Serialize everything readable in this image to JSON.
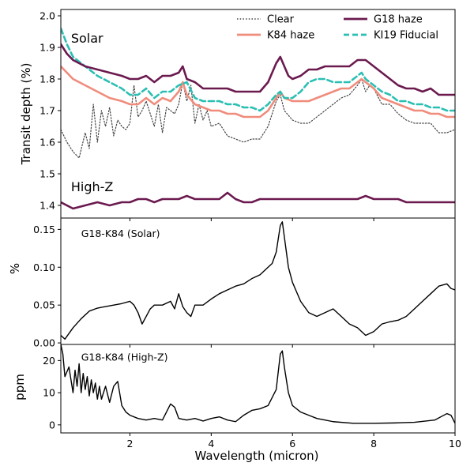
{
  "chart_data": {
    "type": "line",
    "xlabel": "Wavelength (micron)",
    "xlim": [
      0.3,
      10
    ],
    "xticks": [
      2,
      4,
      6,
      8,
      10
    ],
    "panels": [
      {
        "id": "top",
        "ylabel": "Transit depth (%)",
        "ylim": [
          1.36,
          2.02
        ],
        "yticks": [
          1.4,
          1.5,
          1.6,
          1.7,
          1.8,
          1.9,
          2.0
        ],
        "yticklabels": [
          "1.4",
          "1.5",
          "1.6",
          "1.7",
          "1.8",
          "1.9",
          "2.0"
        ],
        "annotations": [
          {
            "text": "Solar",
            "x": 0.55,
            "y": 1.915
          },
          {
            "text": "High-Z",
            "x": 0.55,
            "y": 1.445
          }
        ],
        "legend": {
          "placement": "top-right",
          "entries": [
            {
              "label": "Clear",
              "color": "#444444",
              "style": "dotted"
            },
            {
              "label": "G18 haze",
              "color": "#6b1a4f",
              "style": "solid"
            },
            {
              "label": "K84 haze",
              "color": "#f08c7c",
              "style": "solid"
            },
            {
              "label": "KI19 Fiducial",
              "color": "#2bbfb3",
              "style": "dashed"
            }
          ]
        },
        "series": [
          {
            "name": "Clear",
            "color": "#444444",
            "style": "dotted",
            "width": 1.2,
            "x": [
              0.3,
              0.45,
              0.6,
              0.75,
              0.9,
              1.0,
              1.1,
              1.2,
              1.3,
              1.4,
              1.5,
              1.6,
              1.7,
              1.8,
              1.9,
              2.0,
              2.1,
              2.2,
              2.3,
              2.4,
              2.5,
              2.6,
              2.7,
              2.8,
              2.9,
              3.0,
              3.1,
              3.2,
              3.3,
              3.4,
              3.5,
              3.6,
              3.7,
              3.8,
              3.9,
              4.0,
              4.2,
              4.4,
              4.6,
              4.8,
              5.0,
              5.2,
              5.4,
              5.6,
              5.7,
              5.8,
              6.0,
              6.2,
              6.4,
              6.6,
              6.8,
              7.0,
              7.2,
              7.4,
              7.6,
              7.7,
              7.8,
              7.9,
              8.0,
              8.2,
              8.4,
              8.6,
              8.8,
              9.0,
              9.2,
              9.4,
              9.6,
              9.8,
              10.0
            ],
            "y": [
              1.64,
              1.6,
              1.57,
              1.55,
              1.63,
              1.58,
              1.72,
              1.6,
              1.7,
              1.65,
              1.71,
              1.62,
              1.67,
              1.65,
              1.64,
              1.66,
              1.78,
              1.68,
              1.7,
              1.73,
              1.69,
              1.65,
              1.72,
              1.63,
              1.71,
              1.7,
              1.69,
              1.72,
              1.79,
              1.73,
              1.78,
              1.66,
              1.72,
              1.67,
              1.7,
              1.65,
              1.66,
              1.62,
              1.61,
              1.6,
              1.61,
              1.61,
              1.65,
              1.73,
              1.75,
              1.7,
              1.67,
              1.66,
              1.66,
              1.68,
              1.7,
              1.72,
              1.74,
              1.75,
              1.78,
              1.8,
              1.76,
              1.78,
              1.77,
              1.72,
              1.72,
              1.69,
              1.67,
              1.66,
              1.66,
              1.66,
              1.63,
              1.63,
              1.64
            ]
          },
          {
            "name": "K84 haze",
            "color": "#f08c7c",
            "style": "solid",
            "width": 2.6,
            "x": [
              0.3,
              0.6,
              0.9,
              1.2,
              1.5,
              1.8,
              2.0,
              2.2,
              2.4,
              2.6,
              2.8,
              3.0,
              3.2,
              3.3,
              3.4,
              3.6,
              3.8,
              4.0,
              4.2,
              4.4,
              4.6,
              4.8,
              5.0,
              5.2,
              5.4,
              5.6,
              5.7,
              5.8,
              6.0,
              6.2,
              6.4,
              6.6,
              6.8,
              7.0,
              7.2,
              7.4,
              7.6,
              7.7,
              7.8,
              8.0,
              8.2,
              8.4,
              8.6,
              8.8,
              9.0,
              9.2,
              9.4,
              9.6,
              9.8,
              10.0
            ],
            "y": [
              1.84,
              1.8,
              1.78,
              1.76,
              1.74,
              1.73,
              1.72,
              1.72,
              1.74,
              1.72,
              1.74,
              1.73,
              1.76,
              1.79,
              1.75,
              1.72,
              1.71,
              1.7,
              1.7,
              1.69,
              1.69,
              1.68,
              1.68,
              1.68,
              1.7,
              1.74,
              1.76,
              1.74,
              1.73,
              1.73,
              1.73,
              1.74,
              1.75,
              1.76,
              1.77,
              1.77,
              1.79,
              1.8,
              1.79,
              1.77,
              1.74,
              1.73,
              1.72,
              1.71,
              1.7,
              1.7,
              1.69,
              1.69,
              1.68,
              1.68
            ]
          },
          {
            "name": "KI19 Fiducial",
            "color": "#2bbfb3",
            "style": "dashed",
            "width": 2.6,
            "x": [
              0.3,
              0.45,
              0.6,
              0.9,
              1.2,
              1.5,
              1.8,
              2.0,
              2.2,
              2.4,
              2.6,
              2.8,
              3.0,
              3.2,
              3.4,
              3.6,
              3.8,
              4.0,
              4.2,
              4.4,
              4.6,
              4.8,
              5.0,
              5.2,
              5.4,
              5.6,
              5.7,
              5.8,
              6.0,
              6.2,
              6.4,
              6.6,
              6.8,
              7.0,
              7.2,
              7.4,
              7.6,
              7.7,
              7.8,
              8.0,
              8.2,
              8.4,
              8.6,
              8.8,
              9.0,
              9.2,
              9.4,
              9.6,
              9.8,
              10.0
            ],
            "y": [
              1.96,
              1.91,
              1.87,
              1.84,
              1.81,
              1.79,
              1.77,
              1.75,
              1.75,
              1.77,
              1.74,
              1.76,
              1.76,
              1.78,
              1.79,
              1.74,
              1.73,
              1.73,
              1.73,
              1.72,
              1.72,
              1.71,
              1.71,
              1.7,
              1.72,
              1.75,
              1.76,
              1.74,
              1.74,
              1.76,
              1.79,
              1.8,
              1.8,
              1.79,
              1.79,
              1.79,
              1.81,
              1.82,
              1.8,
              1.78,
              1.76,
              1.75,
              1.73,
              1.73,
              1.72,
              1.72,
              1.71,
              1.71,
              1.7,
              1.7
            ]
          },
          {
            "name": "G18 haze (Solar)",
            "color": "#6b1a4f",
            "style": "solid",
            "width": 2.6,
            "x": [
              0.3,
              0.45,
              0.6,
              0.9,
              1.2,
              1.5,
              1.8,
              2.0,
              2.2,
              2.4,
              2.6,
              2.8,
              3.0,
              3.2,
              3.3,
              3.4,
              3.6,
              3.8,
              4.0,
              4.2,
              4.4,
              4.6,
              4.8,
              5.0,
              5.2,
              5.4,
              5.5,
              5.6,
              5.7,
              5.8,
              5.9,
              6.0,
              6.2,
              6.4,
              6.6,
              6.8,
              7.0,
              7.2,
              7.4,
              7.6,
              7.7,
              7.8,
              8.0,
              8.2,
              8.4,
              8.6,
              8.8,
              9.0,
              9.2,
              9.4,
              9.6,
              9.8,
              10.0
            ],
            "y": [
              1.91,
              1.88,
              1.86,
              1.84,
              1.83,
              1.82,
              1.81,
              1.8,
              1.8,
              1.81,
              1.79,
              1.81,
              1.81,
              1.82,
              1.84,
              1.8,
              1.79,
              1.77,
              1.77,
              1.77,
              1.77,
              1.76,
              1.76,
              1.76,
              1.76,
              1.79,
              1.82,
              1.85,
              1.87,
              1.84,
              1.81,
              1.8,
              1.81,
              1.83,
              1.83,
              1.84,
              1.84,
              1.84,
              1.84,
              1.86,
              1.86,
              1.86,
              1.84,
              1.82,
              1.8,
              1.78,
              1.77,
              1.77,
              1.76,
              1.77,
              1.75,
              1.75,
              1.75
            ]
          },
          {
            "name": "G18 haze (High-Z)",
            "color": "#6b1a4f",
            "style": "solid",
            "width": 2.6,
            "x": [
              0.3,
              0.6,
              0.9,
              1.2,
              1.5,
              1.8,
              2.0,
              2.2,
              2.4,
              2.6,
              2.8,
              3.0,
              3.2,
              3.4,
              3.6,
              3.8,
              4.0,
              4.2,
              4.4,
              4.6,
              4.8,
              5.0,
              5.2,
              5.4,
              5.6,
              5.8,
              6.0,
              6.2,
              6.4,
              6.6,
              6.8,
              7.0,
              7.2,
              7.4,
              7.6,
              7.8,
              8.0,
              8.2,
              8.4,
              8.6,
              8.8,
              9.0,
              9.2,
              9.4,
              9.6,
              9.8,
              10.0
            ],
            "y": [
              1.41,
              1.39,
              1.4,
              1.41,
              1.4,
              1.41,
              1.41,
              1.42,
              1.42,
              1.41,
              1.42,
              1.42,
              1.42,
              1.43,
              1.42,
              1.42,
              1.42,
              1.42,
              1.44,
              1.42,
              1.41,
              1.41,
              1.42,
              1.42,
              1.42,
              1.42,
              1.42,
              1.42,
              1.42,
              1.42,
              1.42,
              1.42,
              1.42,
              1.42,
              1.42,
              1.43,
              1.42,
              1.42,
              1.42,
              1.42,
              1.41,
              1.41,
              1.41,
              1.41,
              1.41,
              1.41,
              1.41
            ]
          }
        ]
      },
      {
        "id": "middle",
        "ylabel": "%",
        "ylim": [
          -0.002,
          0.165
        ],
        "yticks": [
          0.0,
          0.05,
          0.1,
          0.15
        ],
        "yticklabels": [
          "0.00",
          "0.05",
          "0.10",
          "0.15"
        ],
        "annotations": [
          {
            "text": "G18-K84 (Solar)",
            "x": 0.8,
            "y": 0.14
          }
        ],
        "series": [
          {
            "name": "G18-K84 (Solar)",
            "color": "#000000",
            "style": "solid",
            "width": 1.4,
            "x": [
              0.3,
              0.4,
              0.6,
              0.8,
              1.0,
              1.2,
              1.4,
              1.6,
              1.8,
              2.0,
              2.1,
              2.2,
              2.3,
              2.4,
              2.5,
              2.6,
              2.8,
              3.0,
              3.1,
              3.2,
              3.3,
              3.4,
              3.5,
              3.6,
              3.8,
              4.0,
              4.2,
              4.4,
              4.6,
              4.8,
              5.0,
              5.2,
              5.4,
              5.5,
              5.6,
              5.7,
              5.75,
              5.8,
              5.9,
              6.0,
              6.2,
              6.4,
              6.6,
              6.8,
              7.0,
              7.2,
              7.4,
              7.6,
              7.8,
              8.0,
              8.2,
              8.4,
              8.6,
              8.8,
              9.0,
              9.2,
              9.4,
              9.6,
              9.8,
              9.9,
              10.0
            ],
            "y": [
              0.01,
              0.005,
              0.02,
              0.032,
              0.042,
              0.046,
              0.048,
              0.05,
              0.052,
              0.055,
              0.05,
              0.04,
              0.025,
              0.035,
              0.045,
              0.05,
              0.05,
              0.055,
              0.045,
              0.065,
              0.048,
              0.04,
              0.035,
              0.05,
              0.05,
              0.058,
              0.065,
              0.07,
              0.075,
              0.078,
              0.085,
              0.09,
              0.1,
              0.105,
              0.12,
              0.155,
              0.16,
              0.14,
              0.1,
              0.08,
              0.055,
              0.04,
              0.035,
              0.04,
              0.045,
              0.035,
              0.025,
              0.02,
              0.01,
              0.015,
              0.025,
              0.028,
              0.03,
              0.035,
              0.045,
              0.055,
              0.065,
              0.075,
              0.078,
              0.072,
              0.07
            ]
          }
        ]
      },
      {
        "id": "bottom",
        "ylabel": "ppm",
        "ylim": [
          -2.5,
          25
        ],
        "yticks": [
          0,
          10,
          20
        ],
        "yticklabels": [
          "0",
          "10",
          "20"
        ],
        "annotations": [
          {
            "text": "G18-K84 (High-Z)",
            "x": 0.8,
            "y": 20.0
          }
        ],
        "series": [
          {
            "name": "G18-K84 (High-Z)",
            "color": "#000000",
            "style": "solid",
            "width": 1.4,
            "x": [
              0.3,
              0.35,
              0.4,
              0.5,
              0.6,
              0.65,
              0.7,
              0.75,
              0.8,
              0.85,
              0.9,
              0.95,
              1.0,
              1.05,
              1.1,
              1.15,
              1.2,
              1.25,
              1.3,
              1.4,
              1.5,
              1.6,
              1.7,
              1.8,
              1.9,
              2.0,
              2.2,
              2.4,
              2.6,
              2.8,
              3.0,
              3.1,
              3.2,
              3.4,
              3.6,
              3.8,
              4.0,
              4.2,
              4.4,
              4.6,
              4.8,
              5.0,
              5.2,
              5.4,
              5.6,
              5.7,
              5.75,
              5.8,
              5.9,
              6.0,
              6.2,
              6.4,
              6.6,
              6.8,
              7.0,
              7.5,
              8.0,
              8.5,
              9.0,
              9.5,
              9.8,
              9.9,
              10.0
            ],
            "y": [
              25,
              22,
              15,
              18,
              10,
              17,
              12,
              19,
              10,
              16,
              11,
              15,
              9,
              14,
              10,
              13,
              8,
              12,
              8,
              12,
              7,
              12,
              13.5,
              6,
              4,
              3,
              2,
              1.5,
              2,
              1.5,
              6.5,
              5.5,
              2,
              1.5,
              2,
              1.2,
              2,
              2.5,
              1.5,
              1,
              3,
              4.5,
              5,
              6,
              11,
              22,
              23,
              18,
              10,
              6,
              4,
              3,
              2,
              1.5,
              1,
              0.5,
              0.5,
              0.6,
              0.8,
              1.5,
              3.5,
              3,
              0.5
            ]
          }
        ]
      }
    ]
  }
}
